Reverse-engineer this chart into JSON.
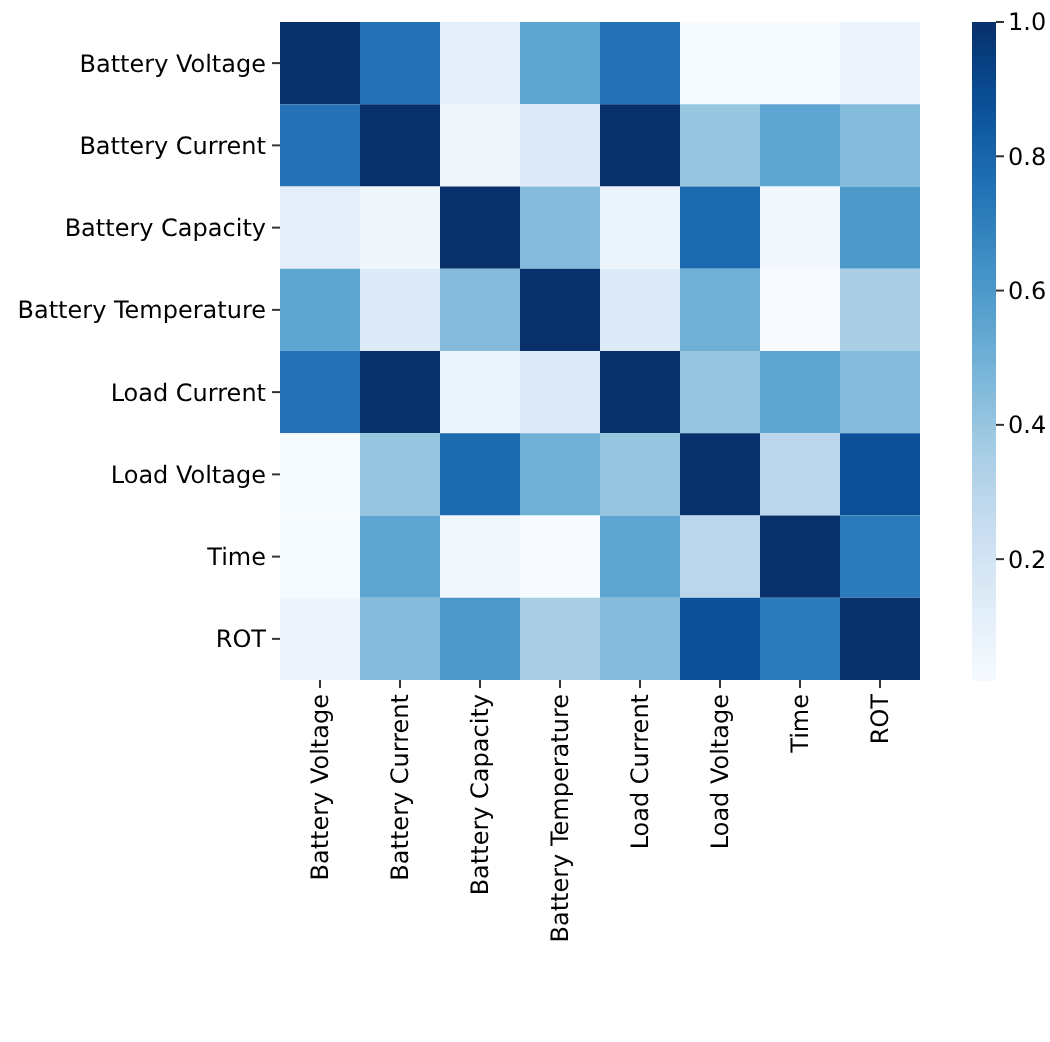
{
  "chart_data": {
    "type": "heatmap",
    "categories": [
      "Battery Voltage",
      "Battery Current",
      "Battery Capacity",
      "Battery Temperature",
      "Load Current",
      "Load Voltage",
      "Time",
      "ROT"
    ],
    "y_categories": [
      "Battery Voltage",
      "Battery Current",
      "Battery Capacity",
      "Battery Temperature",
      "Load Current",
      "Load Voltage",
      "Time",
      "ROT"
    ],
    "cells": [
      [
        1,
        0.75,
        0.12,
        0.55,
        0.75,
        0.03,
        0.03,
        0.07
      ],
      [
        0.75,
        1,
        0.06,
        0.15,
        1,
        0.4,
        0.55,
        0.45
      ],
      [
        0.12,
        0.06,
        1,
        0.45,
        0.08,
        0.78,
        0.05,
        0.6
      ],
      [
        0.55,
        0.15,
        0.45,
        1,
        0.15,
        0.5,
        0.02,
        0.35
      ],
      [
        0.75,
        1,
        0.08,
        0.15,
        1,
        0.4,
        0.55,
        0.45
      ],
      [
        0.03,
        0.4,
        0.78,
        0.5,
        0.4,
        1,
        0.3,
        0.88
      ],
      [
        0.03,
        0.55,
        0.05,
        0.02,
        0.55,
        0.3,
        1,
        0.72
      ],
      [
        0.07,
        0.45,
        0.6,
        0.35,
        0.45,
        0.88,
        0.72,
        1
      ]
    ],
    "clim": [
      0.02,
      1
    ],
    "cticks": [
      {
        "value": 0.2,
        "label": "0.2"
      },
      {
        "value": 0.4,
        "label": "0.4"
      },
      {
        "value": 0.6,
        "label": "0.6"
      },
      {
        "value": 0.8,
        "label": "0.8"
      },
      {
        "value": 1,
        "label": "1.0"
      }
    ]
  }
}
